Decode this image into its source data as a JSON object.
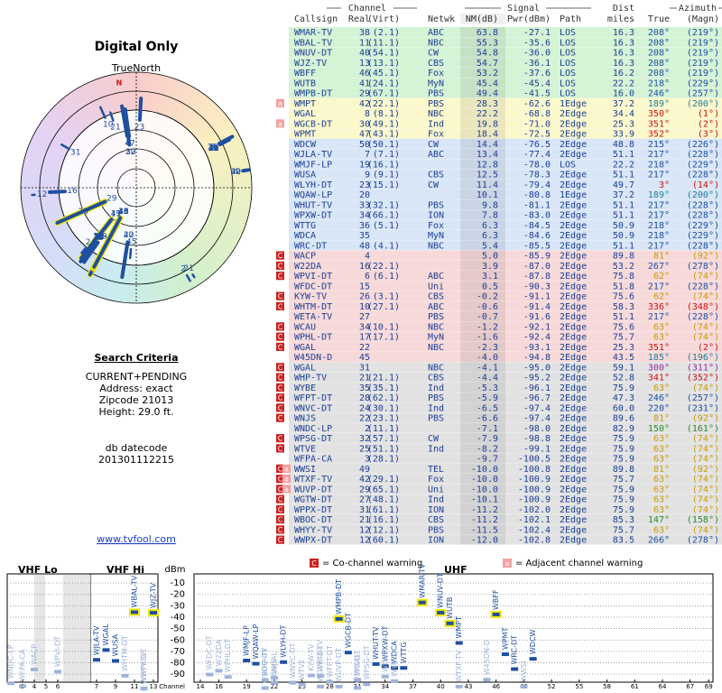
{
  "title": "Digital Only",
  "north_label": "TrueNorth",
  "north_marker": "N",
  "search": {
    "heading": "Search Criteria",
    "lines": [
      "CURRENT+PENDING",
      "Address: exact",
      "Zipcode 21013",
      "Height: 29.0 ft."
    ],
    "db_label": "db datecode",
    "db_code": "201301112215"
  },
  "link": "www.tvfool.com",
  "table": {
    "groups": [
      "Channel",
      "Signal",
      "Azimuth"
    ],
    "dist_top": "Dist",
    "headers": [
      "Callsign",
      "Real",
      "(Virt)",
      "Netwk",
      "NM(dB)",
      "Pwr(dBm)",
      "Path",
      "miles",
      "True",
      "(Magn)"
    ],
    "rows": [
      {
        "cells": [
          "WMAR-TV",
          38,
          "(2.1)",
          "ABC",
          "63.8",
          "-27.1",
          "LOS",
          "16.3",
          "208°",
          "(219°)"
        ],
        "band": "#d5f3d5",
        "az": "#1d4fa3"
      },
      {
        "cells": [
          "WBAL-TV",
          11,
          "(11.1)",
          "NBC",
          "55.3",
          "-35.6",
          "LOS",
          "16.3",
          "208°",
          "(219°)"
        ],
        "band": "#d5f3d5",
        "az": "#1d4fa3"
      },
      {
        "cells": [
          "WNUV-DT",
          40,
          "(54.1)",
          "CW",
          "54.8",
          "-36.0",
          "LOS",
          "16.3",
          "208°",
          "(219°)"
        ],
        "band": "#d5f3d5",
        "az": "#1d4fa3"
      },
      {
        "cells": [
          "WJZ-TV",
          13,
          "(13.1)",
          "CBS",
          "54.7",
          "-36.1",
          "LOS",
          "16.3",
          "208°",
          "(219°)"
        ],
        "band": "#d5f3d5",
        "az": "#1d4fa3"
      },
      {
        "cells": [
          "WBFF",
          46,
          "(45.1)",
          "Fox",
          "53.2",
          "-37.6",
          "LOS",
          "16.2",
          "208°",
          "(219°)"
        ],
        "band": "#d5f3d5",
        "az": "#1d4fa3"
      },
      {
        "cells": [
          "WUTB",
          41,
          "(24.1)",
          "MyN",
          "45.4",
          "-45.4",
          "LOS",
          "22.2",
          "218°",
          "(229°)"
        ],
        "band": "#d5f3d5",
        "az": "#1d4fa3"
      },
      {
        "cells": [
          "WMPB-DT",
          29,
          "(67.1)",
          "PBS",
          "49.4",
          "-41.5",
          "LOS",
          "16.0",
          "246°",
          "(257°)"
        ],
        "band": "#d5f3d5",
        "az": "#1d4fa3"
      },
      {
        "cells": [
          "WMPT",
          42,
          "(22.1)",
          "PBS",
          "28.3",
          "-62.6",
          "1Edge",
          "37.2",
          "189°",
          "(200°)"
        ],
        "band": "#fbf8cc",
        "az": "#1e7f9a",
        "warn": [
          "a"
        ]
      },
      {
        "cells": [
          "WGAL",
          8,
          "(8.1)",
          "NBC",
          "22.2",
          "-68.8",
          "2Edge",
          "34.4",
          "350°",
          "(1°)"
        ],
        "band": "#fbf8cc",
        "az": "#d01010"
      },
      {
        "cells": [
          "WGCB-DT",
          30,
          "(49.1)",
          "Ind",
          "19.8",
          "-71.0",
          "2Edge",
          "25.3",
          "351°",
          "(2°)"
        ],
        "band": "#fbf8cc",
        "az": "#d01010",
        "warn": [
          "a"
        ]
      },
      {
        "cells": [
          "WPMT",
          47,
          "(43.1)",
          "Fox",
          "18.4",
          "-72.5",
          "2Edge",
          "33.9",
          "352°",
          "(3°)"
        ],
        "band": "#fbf8cc",
        "az": "#d01010"
      },
      {
        "cells": [
          "WDCW",
          50,
          "(50.1)",
          "CW",
          "14.4",
          "-76.5",
          "2Edge",
          "48.8",
          "215°",
          "(226°)"
        ],
        "band": "#d9e6f7",
        "az": "#1d4fa3"
      },
      {
        "cells": [
          "WJLA-TV",
          7,
          "(7.1)",
          "ABC",
          "13.4",
          "-77.4",
          "2Edge",
          "51.1",
          "217°",
          "(228°)"
        ],
        "band": "#d9e6f7",
        "az": "#1d4fa3"
      },
      {
        "cells": [
          "WMJF-LP",
          19,
          "(16.1)",
          null,
          "12.8",
          "-78.0",
          "LOS",
          "22.2",
          "218°",
          "(229°)"
        ],
        "band": "#d9e6f7",
        "az": "#1d4fa3"
      },
      {
        "cells": [
          "WUSA",
          9,
          "(9.1)",
          "CBS",
          "12.5",
          "-78.3",
          "2Edge",
          "51.1",
          "217°",
          "(228°)"
        ],
        "band": "#d9e6f7",
        "az": "#1d4fa3"
      },
      {
        "cells": [
          "WLYH-DT",
          23,
          "(15.1)",
          "CW",
          "11.4",
          "-79.4",
          "2Edge",
          "49.7",
          "3°",
          "(14°)"
        ],
        "band": "#d9e6f7",
        "az": "#d01010"
      },
      {
        "cells": [
          "WQAW-LP",
          20,
          null,
          null,
          "10.1",
          "-80.8",
          "1Edge",
          "37.2",
          "189°",
          "(200°)"
        ],
        "band": "#d9e6f7",
        "az": "#1e7f9a"
      },
      {
        "cells": [
          "WHUT-TV",
          33,
          "(32.1)",
          "PBS",
          "9.8",
          "-81.1",
          "2Edge",
          "51.1",
          "217°",
          "(228°)"
        ],
        "band": "#d9e6f7",
        "az": "#1d4fa3"
      },
      {
        "cells": [
          "WPXW-DT",
          34,
          "(66.1)",
          "ION",
          "7.8",
          "-83.0",
          "2Edge",
          "51.1",
          "217°",
          "(228°)"
        ],
        "band": "#d9e6f7",
        "az": "#1d4fa3"
      },
      {
        "cells": [
          "WTTG",
          36,
          "(5.1)",
          "Fox",
          "6.3",
          "-84.5",
          "2Edge",
          "50.9",
          "218°",
          "(229°)"
        ],
        "band": "#d9e6f7",
        "az": "#1d4fa3"
      },
      {
        "cells": [
          "WDCA",
          35,
          null,
          "MyN",
          "6.3",
          "-84.6",
          "2Edge",
          "50.9",
          "218°",
          "(229°)"
        ],
        "band": "#d9e6f7",
        "az": "#1d4fa3"
      },
      {
        "cells": [
          "WRC-DT",
          48,
          "(4.1)",
          "NBC",
          "5.4",
          "-85.5",
          "2Edge",
          "51.1",
          "217°",
          "(228°)"
        ],
        "band": "#d9e6f7",
        "az": "#1d4fa3"
      },
      {
        "cells": [
          "WACP",
          4,
          null,
          null,
          "5.0",
          "-85.9",
          "2Edge",
          "89.8",
          "81°",
          "(92°)"
        ],
        "band": "#f7d9d9",
        "az": "#c89b00",
        "warn": [
          "C"
        ]
      },
      {
        "cells": [
          "W22DA",
          16,
          "(22.1)",
          null,
          "3.9",
          "-87.0",
          "2Edge",
          "53.2",
          "267°",
          "(278°)"
        ],
        "band": "#f7d9d9",
        "az": "#1d4fa3",
        "warn": [
          "C"
        ]
      },
      {
        "cells": [
          "WPVI-DT",
          6,
          "(6.1)",
          "ABC",
          "3.1",
          "-87.8",
          "2Edge",
          "75.8",
          "62°",
          "(74°)"
        ],
        "band": "#f7d9d9",
        "az": "#c89b00",
        "warn": [
          "C"
        ]
      },
      {
        "cells": [
          "WFDC-DT",
          15,
          null,
          "Uni",
          "0.5",
          "-90.3",
          "2Edge",
          "51.8",
          "217°",
          "(228°)"
        ],
        "band": "#f7d9d9",
        "az": "#1d4fa3"
      },
      {
        "cells": [
          "KYW-TV",
          26,
          "(3.1)",
          "CBS",
          "-0.2",
          "-91.1",
          "2Edge",
          "75.6",
          "62°",
          "(74°)"
        ],
        "band": "#f7d9d9",
        "az": "#c89b00",
        "warn": [
          "C"
        ]
      },
      {
        "cells": [
          "WHTM-DT",
          10,
          "(27.1)",
          "ABC",
          "-0.6",
          "-91.4",
          "2Edge",
          "58.3",
          "336°",
          "(348°)"
        ],
        "band": "#f7d9d9",
        "az": "#d01010",
        "warn": [
          "C"
        ]
      },
      {
        "cells": [
          "WETA-TV",
          27,
          null,
          "PBS",
          "-0.7",
          "-91.6",
          "2Edge",
          "51.1",
          "217°",
          "(228°)"
        ],
        "band": "#f7d9d9",
        "az": "#1d4fa3"
      },
      {
        "cells": [
          "WCAU",
          34,
          "(10.1)",
          "NBC",
          "-1.2",
          "-92.1",
          "2Edge",
          "75.6",
          "63°",
          "(74°)"
        ],
        "band": "#f7d9d9",
        "az": "#c89b00",
        "warn": [
          "C"
        ]
      },
      {
        "cells": [
          "WPHL-DT",
          17,
          "(17.1)",
          "MyN",
          "-1.6",
          "-92.4",
          "2Edge",
          "75.7",
          "63°",
          "(74°)"
        ],
        "band": "#f7d9d9",
        "az": "#c89b00",
        "warn": [
          "C"
        ]
      },
      {
        "cells": [
          "WGAL",
          22,
          null,
          "NBC",
          "-2.3",
          "-93.1",
          "2Edge",
          "25.3",
          "351°",
          "(2°)"
        ],
        "band": "#f7d9d9",
        "az": "#d01010",
        "warn": [
          "C"
        ]
      },
      {
        "cells": [
          "W45DN-D",
          45,
          null,
          null,
          "-4.0",
          "-94.8",
          "2Edge",
          "43.5",
          "185°",
          "(196°)"
        ],
        "band": "#f7d9d9",
        "az": "#1e7f9a"
      },
      {
        "cells": [
          "WGAL",
          31,
          null,
          "NBC",
          "-4.1",
          "-95.0",
          "2Edge",
          "59.1",
          "300°",
          "(311°)"
        ],
        "band": "#e2e2e2",
        "az": "#9030a0",
        "warn": [
          "C"
        ]
      },
      {
        "cells": [
          "WHP-TV",
          21,
          "(21.1)",
          "CBS",
          "-4.4",
          "-95.2",
          "2Edge",
          "52.8",
          "341°",
          "(352°)"
        ],
        "band": "#e2e2e2",
        "az": "#d01010",
        "warn": [
          "C"
        ]
      },
      {
        "cells": [
          "WYBE",
          35,
          "(35.1)",
          "Ind",
          "-5.3",
          "-96.1",
          "2Edge",
          "75.9",
          "63°",
          "(74°)"
        ],
        "band": "#e2e2e2",
        "az": "#c89b00",
        "warn": [
          "C"
        ]
      },
      {
        "cells": [
          "WFPT-DT",
          28,
          "(62.1)",
          "PBS",
          "-5.9",
          "-96.7",
          "2Edge",
          "47.3",
          "246°",
          "(257°)"
        ],
        "band": "#e2e2e2",
        "az": "#1d4fa3",
        "warn": [
          "C"
        ]
      },
      {
        "cells": [
          "WNVC-DT",
          24,
          "(30.1)",
          "Ind",
          "-6.5",
          "-97.4",
          "2Edge",
          "60.0",
          "220°",
          "(231°)"
        ],
        "band": "#e2e2e2",
        "az": "#1d4fa3",
        "warn": [
          "C"
        ]
      },
      {
        "cells": [
          "WNJS",
          22,
          "(23.1)",
          "PBS",
          "-6.6",
          "-97.4",
          "2Edge",
          "89.6",
          "81°",
          "(92°)"
        ],
        "band": "#e2e2e2",
        "az": "#c89b00",
        "warn": [
          "C"
        ]
      },
      {
        "cells": [
          "WNDC-LP",
          2,
          "(11.1)",
          null,
          "-7.1",
          "-98.0",
          "2Edge",
          "82.9",
          "150°",
          "(161°)"
        ],
        "band": "#e2e2e2",
        "az": "#2a8a2a"
      },
      {
        "cells": [
          "WPSG-DT",
          32,
          "(57.1)",
          "CW",
          "-7.9",
          "-98.8",
          "2Edge",
          "75.9",
          "63°",
          "(74°)"
        ],
        "band": "#e2e2e2",
        "az": "#c89b00",
        "warn": [
          "C"
        ]
      },
      {
        "cells": [
          "WTVE",
          25,
          "(51.1)",
          "Ind",
          "-8.2",
          "-99.1",
          "2Edge",
          "75.9",
          "63°",
          "(74°)"
        ],
        "band": "#e2e2e2",
        "az": "#c89b00",
        "warn": [
          "C"
        ]
      },
      {
        "cells": [
          "WFPA-CA",
          3,
          "(28.1)",
          null,
          "-9.7",
          "-100.5",
          "2Edge",
          "75.9",
          "63°",
          "(74°)"
        ],
        "band": "#e2e2e2",
        "az": "#c89b00"
      },
      {
        "cells": [
          "WWSI",
          49,
          null,
          "TEL",
          "-10.0",
          "-100.8",
          "2Edge",
          "89.8",
          "81°",
          "(92°)"
        ],
        "band": "#e2e2e2",
        "az": "#c89b00",
        "warn": [
          "C",
          "a"
        ]
      },
      {
        "cells": [
          "WTXF-TV",
          42,
          "(29.1)",
          "Fox",
          "-10.0",
          "-100.9",
          "2Edge",
          "75.7",
          "63°",
          "(74°)"
        ],
        "band": "#e2e2e2",
        "az": "#c89b00",
        "warn": [
          "C",
          "a"
        ]
      },
      {
        "cells": [
          "WUVP-DT",
          29,
          "(65.1)",
          "Uni",
          "-10.0",
          "-100.9",
          "2Edge",
          "75.9",
          "63°",
          "(74°)"
        ],
        "band": "#e2e2e2",
        "az": "#c89b00",
        "warn": [
          "C",
          "a"
        ]
      },
      {
        "cells": [
          "WGTW-DT",
          27,
          "(48.1)",
          "Ind",
          "-10.1",
          "-100.9",
          "2Edge",
          "75.9",
          "63°",
          "(74°)"
        ],
        "band": "#e2e2e2",
        "az": "#c89b00",
        "warn": [
          "C"
        ]
      },
      {
        "cells": [
          "WPPX-DT",
          31,
          "(61.1)",
          "ION",
          "-11.2",
          "-102.0",
          "2Edge",
          "75.9",
          "63°",
          "(74°)"
        ],
        "band": "#e2e2e2",
        "az": "#c89b00",
        "warn": [
          "C"
        ]
      },
      {
        "cells": [
          "WBOC-DT",
          21,
          "(16.1)",
          "CBS",
          "-11.2",
          "-102.1",
          "2Edge",
          "85.3",
          "147°",
          "(158°)"
        ],
        "band": "#e2e2e2",
        "az": "#2a8a2a",
        "warn": [
          "C"
        ]
      },
      {
        "cells": [
          "WHYY-TV",
          12,
          "(12.1)",
          "PBS",
          "-11.5",
          "-102.4",
          "2Edge",
          "75.7",
          "63°",
          "(74°)"
        ],
        "band": "#e2e2e2",
        "az": "#c89b00",
        "warn": [
          "C"
        ]
      },
      {
        "cells": [
          "WWPX-DT",
          12,
          "(60.1)",
          "ION",
          "-12.0",
          "-102.8",
          "2Edge",
          "83.5",
          "266°",
          "(278°)"
        ],
        "band": "#e2e2e2",
        "az": "#1d4fa3",
        "warn": [
          "C"
        ]
      }
    ]
  },
  "legend": {
    "co": {
      "icon": "C",
      "text": "= Co-channel warning"
    },
    "adj": {
      "icon": "a",
      "text": "= Adjacent channel warning"
    }
  },
  "spectrum": {
    "bands": [
      "VHF Lo",
      "VHF Hi",
      "UHF"
    ],
    "y_label": "dBm",
    "x_label": "Channel",
    "ylim": [
      -2,
      -97
    ],
    "yticks": [
      -10,
      -20,
      -30,
      -40,
      -50,
      -60,
      -70,
      -80,
      -90
    ],
    "vhf_xticks": [
      3,
      4,
      5,
      6,
      7,
      9,
      11,
      13
    ],
    "uhf_xticks": [
      14,
      16,
      19,
      22,
      25,
      28,
      31,
      34,
      37,
      40,
      43,
      46,
      49,
      52,
      55,
      58,
      61,
      64,
      67,
      69
    ]
  }
}
